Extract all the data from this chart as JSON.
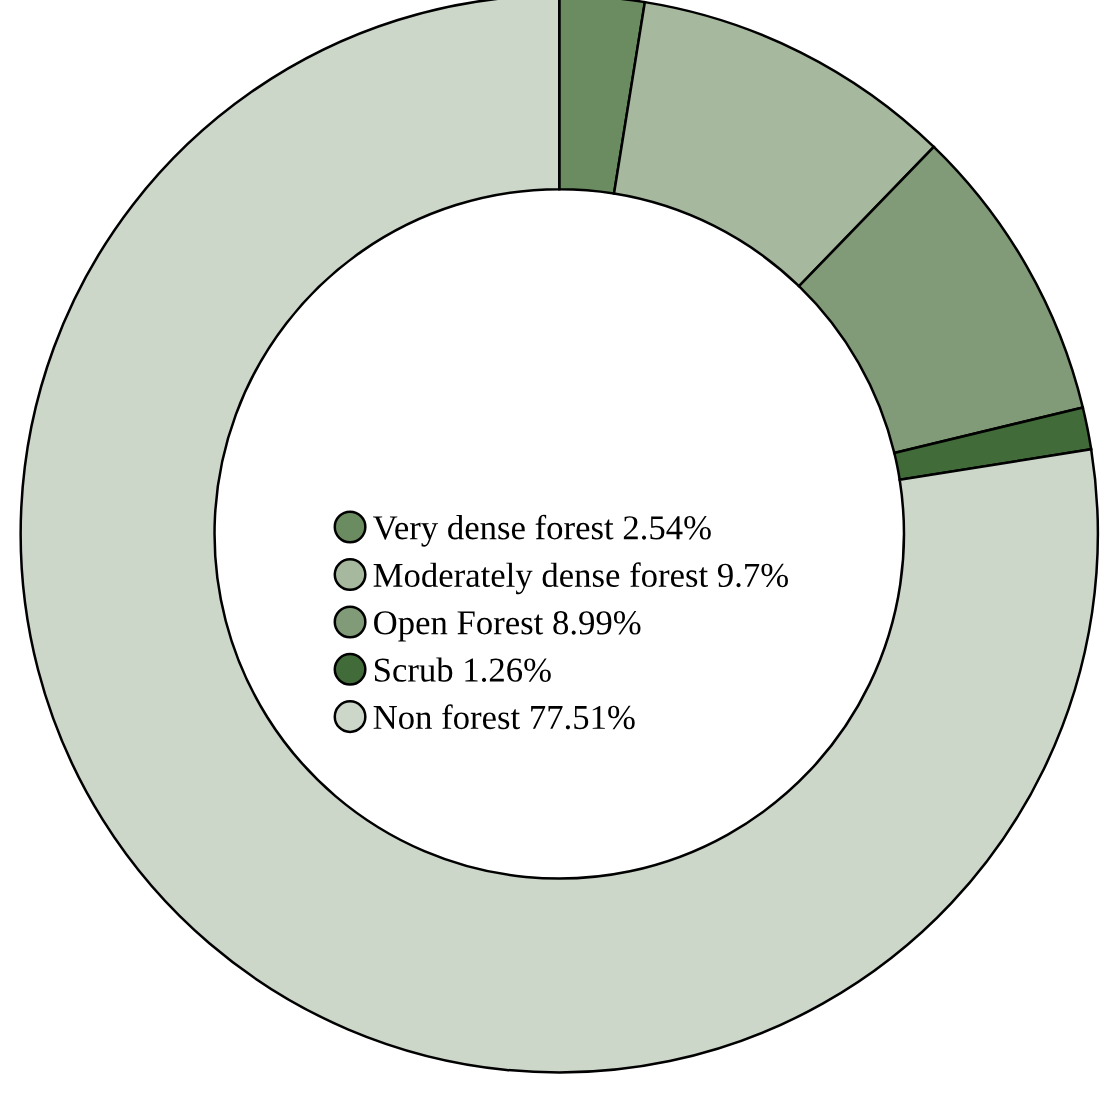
{
  "chart_data": {
    "type": "donut",
    "categories": [
      "Very dense forest 2.54%",
      "Moderately dense forest 9.7%",
      "Open Forest 8.99%",
      "Scrub 1.26%",
      "Non forest 77.51%"
    ],
    "values": [
      2.54,
      9.7,
      8.99,
      1.26,
      77.51
    ],
    "colors": [
      "#6b8c60",
      "#a6b89d",
      "#819a77",
      "#426b3a",
      "#ccd6c9"
    ],
    "legend": "center"
  }
}
